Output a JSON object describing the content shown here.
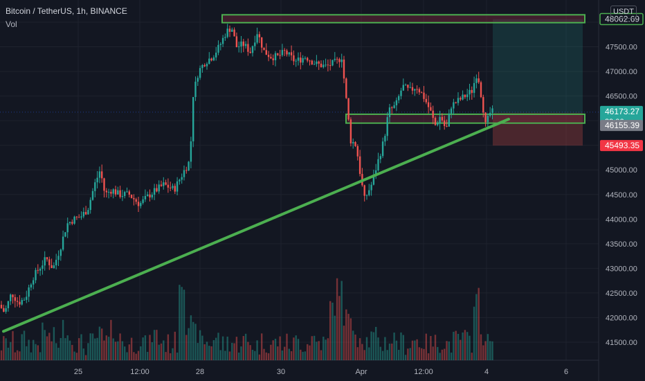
{
  "header": {
    "title": "Bitcoin / TetherUS, 1h, BINANCE",
    "subtitle": "Vol",
    "currency": "USDT"
  },
  "colors": {
    "background": "#131722",
    "up": "#26a69a",
    "down": "#ef5350",
    "zone": "#4caf50",
    "trendline": "#4caf50",
    "target": "#1d3a3a",
    "stop": "#4d2730",
    "label_last": "#26a69a",
    "label_avg": "#787b86",
    "label_stop": "#f23645",
    "text": "#b2b5be"
  },
  "chart_data": {
    "type": "candlestick",
    "title": "Bitcoin / TetherUS, 1h, BINANCE",
    "ylim": [
      41150,
      48450
    ],
    "y_ticks": [
      41500,
      42000,
      42500,
      43000,
      43500,
      44000,
      44500,
      45000,
      45500,
      46000,
      46500,
      47000,
      47500,
      48000
    ],
    "y_tick_labels": [
      "41500.00",
      "42000.00",
      "42500.00",
      "43000.00",
      "43500.00",
      "44000.00",
      "44500.00",
      "45000.00",
      "45500.00",
      "46000.00",
      "46500.00",
      "47000.00",
      "47500.00",
      "48000.00"
    ],
    "x_ticks": [
      "25",
      "12:00",
      "28",
      "30",
      "Apr",
      "12:00",
      "4",
      "6"
    ],
    "price_path": [
      [
        0,
        42300
      ],
      [
        10,
        42100
      ],
      [
        20,
        42500
      ],
      [
        30,
        42300
      ],
      [
        40,
        42400
      ],
      [
        50,
        42800
      ],
      [
        60,
        43000
      ],
      [
        70,
        43200
      ],
      [
        80,
        43000
      ],
      [
        90,
        43400
      ],
      [
        100,
        43900
      ],
      [
        110,
        44000
      ],
      [
        120,
        44050
      ],
      [
        130,
        44200
      ],
      [
        140,
        44700
      ],
      [
        148,
        45000
      ],
      [
        155,
        44500
      ],
      [
        165,
        44600
      ],
      [
        175,
        44500
      ],
      [
        190,
        44500
      ],
      [
        205,
        44300
      ],
      [
        220,
        44500
      ],
      [
        240,
        44700
      ],
      [
        255,
        44600
      ],
      [
        270,
        45000
      ],
      [
        278,
        45200
      ],
      [
        282,
        46500
      ],
      [
        290,
        47000
      ],
      [
        300,
        47200
      ],
      [
        310,
        47300
      ],
      [
        320,
        47500
      ],
      [
        330,
        47800
      ],
      [
        338,
        47900
      ],
      [
        345,
        47500
      ],
      [
        355,
        47550
      ],
      [
        365,
        47400
      ],
      [
        375,
        47800
      ],
      [
        385,
        47400
      ],
      [
        395,
        47300
      ],
      [
        405,
        47300
      ],
      [
        415,
        47400
      ],
      [
        430,
        47200
      ],
      [
        445,
        47300
      ],
      [
        460,
        47150
      ],
      [
        475,
        47100
      ],
      [
        490,
        47200
      ],
      [
        497,
        47300
      ],
      [
        503,
        46500
      ],
      [
        510,
        45600
      ],
      [
        518,
        45500
      ],
      [
        525,
        44800
      ],
      [
        530,
        44400
      ],
      [
        540,
        44700
      ],
      [
        550,
        45200
      ],
      [
        558,
        45600
      ],
      [
        565,
        46200
      ],
      [
        575,
        46300
      ],
      [
        585,
        46700
      ],
      [
        595,
        46600
      ],
      [
        605,
        46700
      ],
      [
        615,
        46500
      ],
      [
        625,
        46200
      ],
      [
        632,
        45900
      ],
      [
        640,
        46100
      ],
      [
        648,
        45800
      ],
      [
        655,
        46300
      ],
      [
        665,
        46400
      ],
      [
        675,
        46500
      ],
      [
        685,
        46600
      ],
      [
        693,
        47000
      ],
      [
        700,
        46400
      ],
      [
        705,
        45900
      ],
      [
        712,
        46173
      ]
    ],
    "volume_levels": [
      0.06,
      0.1,
      0.05,
      0.12,
      0.08,
      0.07,
      0.22,
      0.15,
      0.09,
      0.3,
      0.12,
      0.07,
      0.05,
      0.09,
      0.18,
      0.1,
      0.25,
      0.14,
      0.06,
      0.08,
      0.12,
      0.05,
      0.2,
      0.11,
      0.07,
      0.09,
      0.95,
      0.35,
      0.22,
      0.12,
      0.09,
      0.15,
      0.06,
      0.1,
      0.08,
      0.12,
      0.07,
      0.05,
      0.1,
      0.06,
      0.09,
      0.08,
      0.06,
      0.11,
      0.07,
      0.15,
      0.1,
      0.08,
      0.6,
      0.85,
      0.45,
      0.3,
      0.18,
      0.12,
      0.16,
      0.08,
      0.1,
      0.14,
      0.09,
      0.07,
      0.12,
      0.1,
      0.06,
      0.08,
      0.1,
      0.07,
      0.12,
      0.15,
      0.1,
      0.72,
      0.2,
      0.08
    ],
    "resistance_zone": [
      47990,
      48150
    ],
    "support_zone": [
      45950,
      46130
    ],
    "trendline": {
      "start": [
        0,
        41720
      ],
      "end": [
        735,
        46030
      ]
    },
    "position": {
      "entry": 46155.39,
      "target": 48062.69,
      "stop": 45493.35
    },
    "price_labels": [
      {
        "value": 48062.69,
        "text": "48062.69",
        "style": "target"
      },
      {
        "value": 46173.27,
        "text": "46173.27",
        "sub": "39:06",
        "style": "last"
      },
      {
        "value": 46155.39,
        "text": "46155.39",
        "style": "avg"
      },
      {
        "value": 45493.35,
        "text": "45493.35",
        "style": "stop"
      }
    ]
  }
}
